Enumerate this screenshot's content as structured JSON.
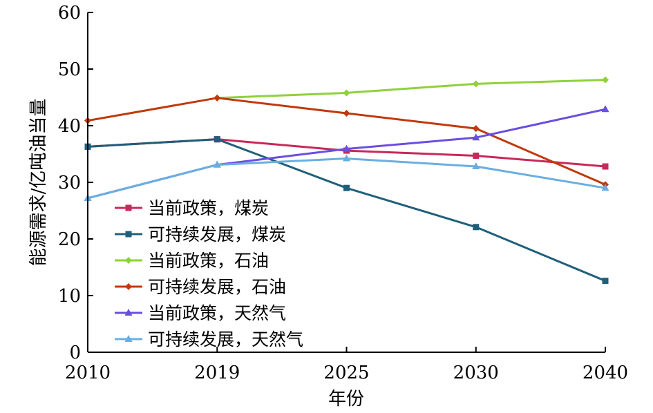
{
  "chart_data": {
    "type": "line",
    "title": "",
    "xlabel": "年份",
    "ylabel": "能源需求/亿吨油当量",
    "categories": [
      "2010",
      "2019",
      "2025",
      "2030",
      "2040"
    ],
    "ylim": [
      0,
      60
    ],
    "yticks": [
      0,
      10,
      20,
      30,
      40,
      50,
      60
    ],
    "grid": false,
    "legend_position": "lower-left",
    "series": [
      {
        "name": "当前政策，煤炭",
        "color": "#c8285a",
        "marker": "square",
        "values": [
          36.3,
          37.6,
          35.6,
          34.7,
          32.8
        ]
      },
      {
        "name": "可持续发展，煤炭",
        "color": "#1f5f7a",
        "marker": "square",
        "values": [
          36.3,
          37.6,
          29.0,
          22.1,
          12.6
        ]
      },
      {
        "name": "当前政策，石油",
        "color": "#8fd13a",
        "marker": "diamond",
        "values": [
          null,
          44.9,
          45.8,
          47.4,
          48.1
        ]
      },
      {
        "name": "可持续发展，石油",
        "color": "#c0390b",
        "marker": "diamond",
        "values": [
          40.9,
          44.9,
          42.2,
          39.5,
          29.6
        ]
      },
      {
        "name": "当前政策，天然气",
        "color": "#6a4ee0",
        "marker": "triangle",
        "values": [
          27.2,
          33.1,
          35.9,
          37.9,
          42.9
        ]
      },
      {
        "name": "可持续发展，天然气",
        "color": "#6aaee0",
        "marker": "triangle",
        "values": [
          27.2,
          33.1,
          34.2,
          32.8,
          29.0
        ]
      }
    ]
  }
}
